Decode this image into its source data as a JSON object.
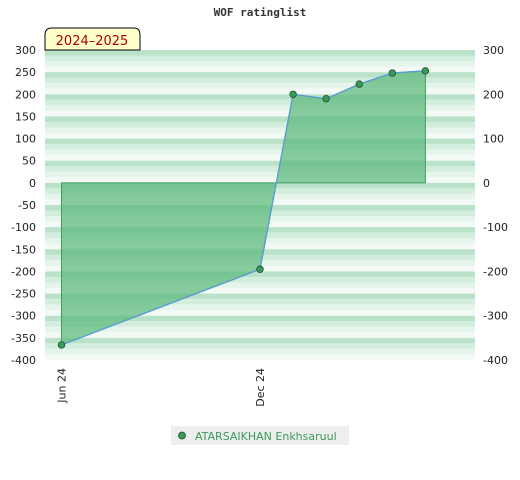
{
  "chart_data": {
    "type": "area",
    "title": "WOF ratinglist",
    "season_label": "2024–2025",
    "y_ticks": [
      300,
      250,
      200,
      150,
      100,
      50,
      0,
      -50,
      -100,
      -150,
      -200,
      -250,
      -300,
      -350,
      -400
    ],
    "y_ticks_right": [
      300,
      200,
      100,
      0,
      -100,
      -200,
      -300,
      -400
    ],
    "ylim": [
      -400,
      300
    ],
    "x_ticks": [
      {
        "label": "Jun 24",
        "t": 0
      },
      {
        "label": "Dec 24",
        "t": 6
      }
    ],
    "xlim": [
      -0.5,
      12.5
    ],
    "series": [
      {
        "name": "ATARSAIKHAN Enkhsaruul",
        "points": [
          {
            "t": 0,
            "y": -366
          },
          {
            "t": 6,
            "y": -195
          },
          {
            "t": 7,
            "y": 200
          },
          {
            "t": 8,
            "y": 190
          },
          {
            "t": 9,
            "y": 223
          },
          {
            "t": 10,
            "y": 248
          },
          {
            "t": 11,
            "y": 253
          }
        ]
      }
    ],
    "colors": {
      "band_dark": "#b6e0c6",
      "band_light": "#f0f8f3",
      "fill": "#5cb87c",
      "fill_stroke": "#3d9a5e",
      "line": "#5a9bd5",
      "marker": "#3a9a5a",
      "season_bg": "#ffffcc",
      "legend_bg": "#eeeeee"
    }
  }
}
